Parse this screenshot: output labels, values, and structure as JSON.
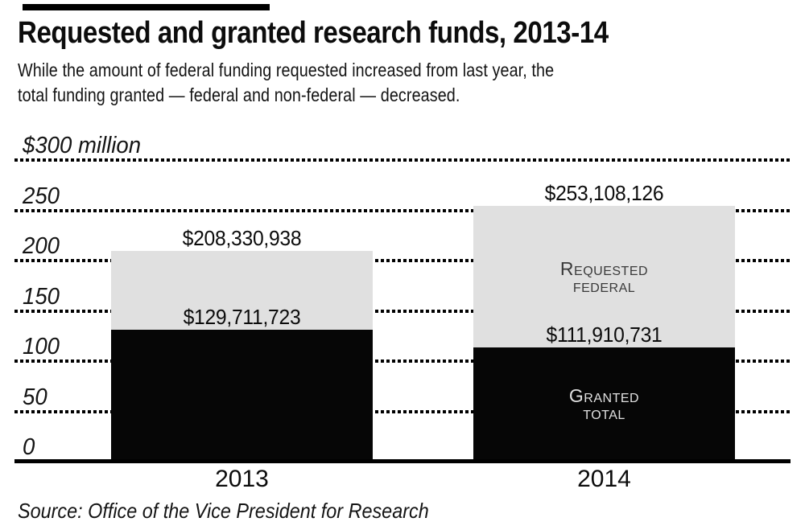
{
  "header": {
    "title": "Requested and granted research funds, 2013-14",
    "subtitle": "While the amount of federal funding requested increased from last year, the total funding granted — federal and non-federal — decreased.",
    "subtitle_line1": "While the amount of federal funding requested increased from last year, the",
    "subtitle_line2": "total funding granted — federal and non-federal — decreased."
  },
  "footer": {
    "source": "Source: Office of the Vice President for Research"
  },
  "colors": {
    "bar_black": "#060606",
    "bar_gray": "#e0e0e0",
    "requested_label_text": "#3a3a3a",
    "granted_label_text": "#e0e0e0",
    "grid": "#000000"
  },
  "chart_data": {
    "type": "bar",
    "layout": "overlaid",
    "title": "Requested and granted research funds, 2013-14",
    "unit": "USD",
    "xlabel": "",
    "ylabel": "$ million",
    "ylim": [
      0,
      300
    ],
    "grid": "dotted-horizontal",
    "legend_position": "labels-inside-2014-bar",
    "axis_ticks": [
      {
        "value": 300,
        "label": "$300 million",
        "line": "dotted"
      },
      {
        "value": 250,
        "label": "250",
        "line": "dotted"
      },
      {
        "value": 200,
        "label": "200",
        "line": "dotted"
      },
      {
        "value": 150,
        "label": "150",
        "line": "dotted"
      },
      {
        "value": 100,
        "label": "100",
        "line": "dotted"
      },
      {
        "value": 50,
        "label": "50",
        "line": "dotted"
      },
      {
        "value": 0,
        "label": "0",
        "line": "solid"
      }
    ],
    "categories": [
      "2013",
      "2014"
    ],
    "series": [
      {
        "name": "Requested federal",
        "role": "back",
        "color": "#e0e0e0",
        "values_millions": [
          208.330938,
          253.108126
        ],
        "values_exact": [
          208330938,
          253108126
        ],
        "value_labels": [
          "$208,330,938",
          "$253,108,126"
        ]
      },
      {
        "name": "Granted total",
        "role": "front",
        "color": "#060606",
        "values_millions": [
          129.711723,
          111.910731
        ],
        "values_exact": [
          129711723,
          111910731
        ],
        "value_labels": [
          "$129,711,723",
          "$111,910,731"
        ]
      }
    ],
    "segment_labels": {
      "category": "2014",
      "requested": {
        "lines": [
          "Requested",
          "federal"
        ],
        "color": "#3a3a3a"
      },
      "granted": {
        "lines": [
          "Granted",
          "total"
        ],
        "color": "#e0e0e0"
      }
    }
  }
}
